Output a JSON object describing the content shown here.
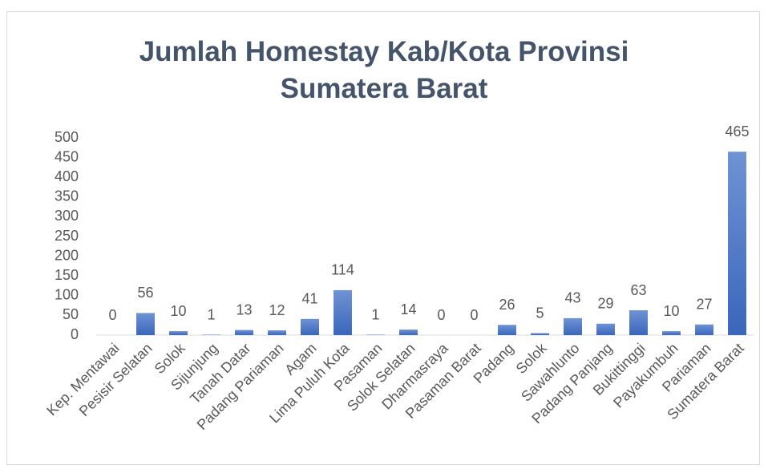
{
  "chart_data": {
    "type": "bar",
    "title": "Jumlah Homestay Kab/Kota Provinsi Sumatera Barat",
    "categories": [
      "Kep. Mentawai",
      "Pesisir Selatan",
      "Solok",
      "Sijunjung",
      "Tanah Datar",
      "Padang Pariaman",
      "Agam",
      "Lima Puluh Kota",
      "Pasaman",
      "Solok Selatan",
      "Dharmasraya",
      "Pasaman Barat",
      "Padang",
      "Solok",
      "Sawahlunto",
      "Padang Panjang",
      "Bukittinggi",
      "Payakumbuh",
      "Pariaman",
      "Sumatera Barat"
    ],
    "values": [
      0,
      56,
      10,
      1,
      13,
      12,
      41,
      114,
      1,
      14,
      0,
      0,
      26,
      5,
      43,
      29,
      63,
      10,
      27,
      465
    ],
    "color": "#4472c4",
    "ylim": [
      0,
      500
    ],
    "yticks": [
      0,
      50,
      100,
      150,
      200,
      250,
      300,
      350,
      400,
      450,
      500
    ],
    "grid": false
  }
}
